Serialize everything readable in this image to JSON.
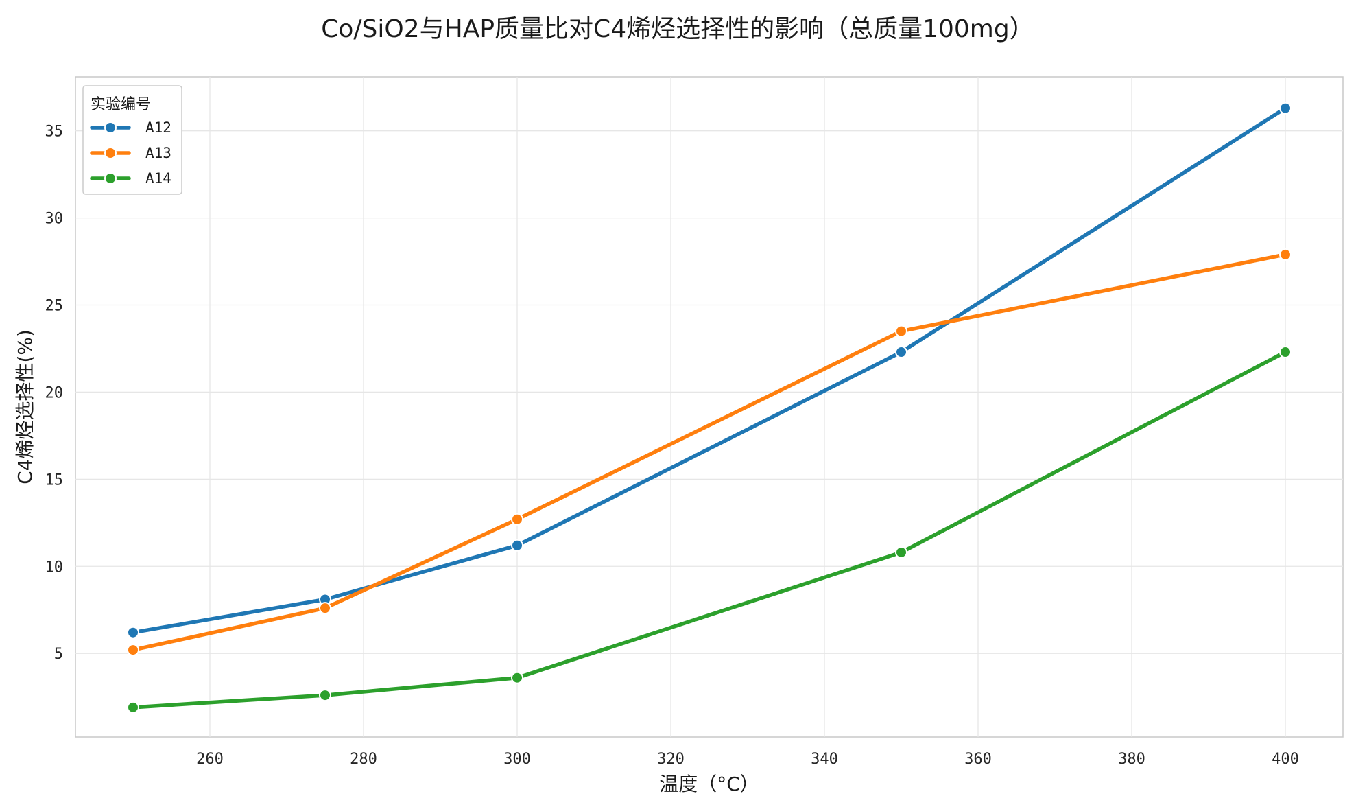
{
  "chart_data": {
    "type": "line",
    "title": "Co/SiO2与HAP质量比对C4烯烃选择性的影响（总质量100mg）",
    "xlabel": "温度（°C）",
    "ylabel": "C4烯烃选择性(%)",
    "x": [
      250,
      275,
      300,
      350,
      400
    ],
    "xlim": [
      242.5,
      407.5
    ],
    "ylim": [
      0.2,
      38.1
    ],
    "xticks": [
      260,
      280,
      300,
      320,
      340,
      360,
      380,
      400
    ],
    "yticks": [
      5,
      10,
      15,
      20,
      25,
      30,
      35
    ],
    "grid": true,
    "legend": {
      "title": "实验编号",
      "placement": "top-left"
    },
    "series": [
      {
        "name": "A12",
        "color": "#1f77b4",
        "values": [
          6.2,
          8.1,
          11.2,
          22.3,
          36.3
        ]
      },
      {
        "name": "A13",
        "color": "#ff7f0e",
        "values": [
          5.2,
          7.6,
          12.7,
          23.5,
          27.9
        ]
      },
      {
        "name": "A14",
        "color": "#2ca02c",
        "values": [
          1.9,
          2.6,
          3.6,
          10.8,
          22.3
        ]
      }
    ]
  }
}
